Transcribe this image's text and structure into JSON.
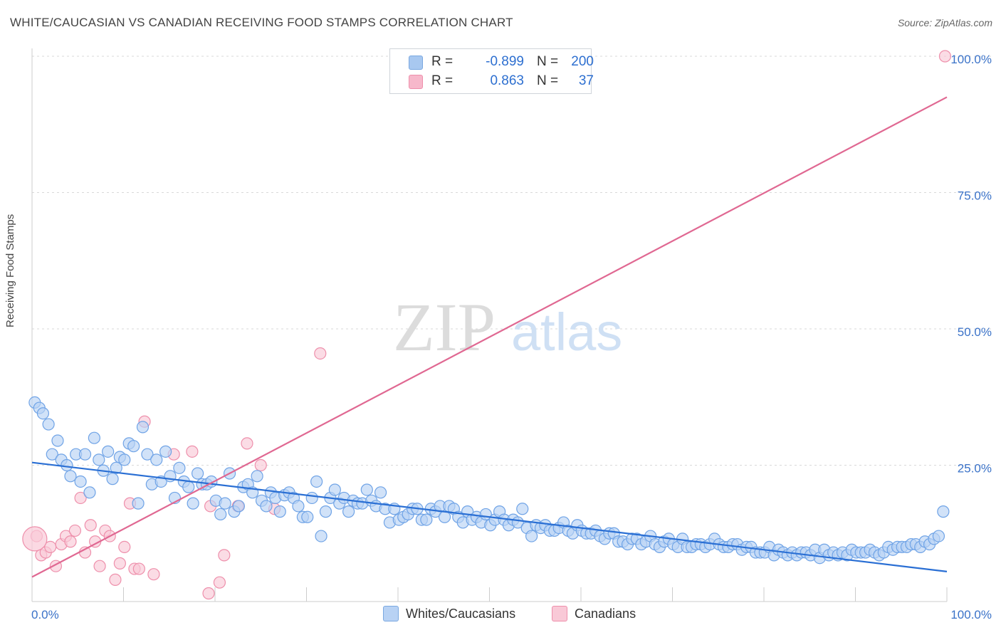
{
  "title": "WHITE/CAUCASIAN VS CANADIAN RECEIVING FOOD STAMPS CORRELATION CHART",
  "source": "Source: ZipAtlas.com",
  "watermark": {
    "zip": "ZIP",
    "atlas": "atlas"
  },
  "legend": {
    "rows": [
      {
        "r_label": "R =",
        "r_value": "-0.899",
        "n_label": "N =",
        "n_value": "200",
        "color": "#a8c8f0",
        "border": "#7aa8e0",
        "text_color": "#2d6fd0"
      },
      {
        "r_label": "R =",
        "r_value": "0.863",
        "n_label": "N =",
        "n_value": "37",
        "color": "#f7b8cb",
        "border": "#ee8fab",
        "text_color": "#2d6fd0"
      }
    ]
  },
  "bottom_legend": [
    {
      "label": "Whites/Caucasians",
      "color": "#b8d2f4",
      "border": "#7aa8e0"
    },
    {
      "label": "Canadians",
      "color": "#f9c9d7",
      "border": "#ee8fab"
    }
  ],
  "chart_data": {
    "type": "scatter",
    "title": "WHITE/CAUCASIAN VS CANADIAN RECEIVING FOOD STAMPS CORRELATION CHART",
    "xlabel": "",
    "ylabel": "Receiving Food Stamps",
    "xlim": [
      0,
      100
    ],
    "ylim": [
      0,
      100
    ],
    "x_tick_labels": [
      "0.0%",
      "100.0%"
    ],
    "y_ticks": [
      25,
      50,
      75,
      100
    ],
    "y_tick_labels": [
      "25.0%",
      "50.0%",
      "75.0%",
      "100.0%"
    ],
    "grid": "horizontal dashed",
    "legend_placement": "top-center",
    "series": [
      {
        "name": "Whites/Caucasians",
        "color": "#6fa3e6",
        "fill": "#b8d2f4",
        "r": -0.899,
        "n": 200,
        "trend": {
          "x": [
            0,
            100
          ],
          "y": [
            25.5,
            5.5
          ],
          "color": "#2a6fd4"
        },
        "points": [
          [
            0.3,
            36.5
          ],
          [
            0.8,
            35.5
          ],
          [
            1.2,
            34.5
          ],
          [
            1.8,
            32.5
          ],
          [
            2.2,
            27
          ],
          [
            2.8,
            29.5
          ],
          [
            3.2,
            26
          ],
          [
            3.8,
            25
          ],
          [
            4.2,
            23
          ],
          [
            4.8,
            27
          ],
          [
            5.3,
            22
          ],
          [
            5.8,
            27
          ],
          [
            6.3,
            20
          ],
          [
            6.8,
            30
          ],
          [
            7.3,
            26
          ],
          [
            7.8,
            24
          ],
          [
            8.3,
            27.5
          ],
          [
            8.8,
            22.5
          ],
          [
            9.2,
            24.5
          ],
          [
            9.6,
            26.5
          ],
          [
            10.1,
            26
          ],
          [
            10.6,
            29
          ],
          [
            11.1,
            28.5
          ],
          [
            11.6,
            18
          ],
          [
            12.1,
            32
          ],
          [
            12.6,
            27
          ],
          [
            13.1,
            21.5
          ],
          [
            13.6,
            26
          ],
          [
            14.1,
            22
          ],
          [
            14.6,
            27.5
          ],
          [
            15.1,
            23
          ],
          [
            15.6,
            19
          ],
          [
            16.1,
            24.5
          ],
          [
            16.6,
            22
          ],
          [
            17.1,
            21
          ],
          [
            17.6,
            18
          ],
          [
            18.1,
            23.5
          ],
          [
            18.6,
            21.5
          ],
          [
            19.1,
            21.5
          ],
          [
            19.6,
            22
          ],
          [
            20.1,
            18.5
          ],
          [
            20.6,
            16
          ],
          [
            21.1,
            18
          ],
          [
            21.6,
            23.5
          ],
          [
            22.1,
            16.5
          ],
          [
            22.6,
            17.5
          ],
          [
            23.1,
            21
          ],
          [
            23.6,
            21.5
          ],
          [
            24.1,
            20
          ],
          [
            24.6,
            23
          ],
          [
            25.1,
            18.5
          ],
          [
            25.6,
            17.5
          ],
          [
            26.1,
            20
          ],
          [
            26.6,
            19
          ],
          [
            27.1,
            16.5
          ],
          [
            27.6,
            19.5
          ],
          [
            28.1,
            20
          ],
          [
            28.6,
            19
          ],
          [
            29.1,
            17.5
          ],
          [
            29.6,
            15.5
          ],
          [
            30.1,
            15.5
          ],
          [
            30.6,
            19
          ],
          [
            31.1,
            22
          ],
          [
            31.6,
            12
          ],
          [
            32.1,
            16.5
          ],
          [
            32.6,
            19
          ],
          [
            33.1,
            20.5
          ],
          [
            33.6,
            18
          ],
          [
            34.1,
            19
          ],
          [
            34.6,
            16.5
          ],
          [
            35.1,
            18.5
          ],
          [
            35.6,
            18
          ],
          [
            36.1,
            18
          ],
          [
            36.6,
            20.5
          ],
          [
            37.1,
            18.5
          ],
          [
            37.6,
            17.5
          ],
          [
            38.1,
            20
          ],
          [
            38.6,
            17
          ],
          [
            39.1,
            14.5
          ],
          [
            39.6,
            17
          ],
          [
            40.1,
            15
          ],
          [
            40.6,
            15.5
          ],
          [
            41.1,
            16
          ],
          [
            41.6,
            17
          ],
          [
            42.1,
            17
          ],
          [
            42.6,
            15
          ],
          [
            43.1,
            15
          ],
          [
            43.6,
            17
          ],
          [
            44.1,
            16.5
          ],
          [
            44.6,
            17.5
          ],
          [
            45.1,
            15.5
          ],
          [
            45.6,
            17.5
          ],
          [
            46.1,
            17
          ],
          [
            46.6,
            15.5
          ],
          [
            47.1,
            14.5
          ],
          [
            47.6,
            16.5
          ],
          [
            48.1,
            15
          ],
          [
            48.6,
            15.5
          ],
          [
            49.1,
            14.5
          ],
          [
            49.6,
            16
          ],
          [
            50.1,
            14
          ],
          [
            50.6,
            15
          ],
          [
            51.1,
            16.5
          ],
          [
            51.6,
            15
          ],
          [
            52.1,
            14
          ],
          [
            52.6,
            15
          ],
          [
            53.1,
            14.5
          ],
          [
            53.6,
            17
          ],
          [
            54.1,
            13.5
          ],
          [
            54.6,
            12
          ],
          [
            55.1,
            14
          ],
          [
            55.6,
            13.5
          ],
          [
            56.1,
            14
          ],
          [
            56.6,
            13
          ],
          [
            57.1,
            13
          ],
          [
            57.6,
            13.5
          ],
          [
            58.1,
            14.5
          ],
          [
            58.6,
            13
          ],
          [
            59.1,
            12.5
          ],
          [
            59.6,
            14
          ],
          [
            60.1,
            13
          ],
          [
            60.6,
            12.5
          ],
          [
            61.1,
            12.5
          ],
          [
            61.6,
            13
          ],
          [
            62.1,
            12
          ],
          [
            62.6,
            11.5
          ],
          [
            63.1,
            12.5
          ],
          [
            63.6,
            12.5
          ],
          [
            64.1,
            11
          ],
          [
            64.6,
            11
          ],
          [
            65.1,
            10.5
          ],
          [
            65.6,
            11.5
          ],
          [
            66.1,
            11.5
          ],
          [
            66.6,
            10.5
          ],
          [
            67.1,
            11
          ],
          [
            67.6,
            12
          ],
          [
            68.1,
            10.5
          ],
          [
            68.6,
            10
          ],
          [
            69.1,
            11
          ],
          [
            69.6,
            11.5
          ],
          [
            70.1,
            10.5
          ],
          [
            70.6,
            10
          ],
          [
            71.1,
            11.5
          ],
          [
            71.6,
            10
          ],
          [
            72.1,
            10
          ],
          [
            72.6,
            10.5
          ],
          [
            73.1,
            10.5
          ],
          [
            73.6,
            10
          ],
          [
            74.1,
            10.5
          ],
          [
            74.6,
            11.5
          ],
          [
            75.1,
            10.5
          ],
          [
            75.6,
            10
          ],
          [
            76.1,
            10
          ],
          [
            76.6,
            10.5
          ],
          [
            77.1,
            10.5
          ],
          [
            77.6,
            9.5
          ],
          [
            78.1,
            10
          ],
          [
            78.6,
            10
          ],
          [
            79.1,
            9
          ],
          [
            79.6,
            9
          ],
          [
            80.1,
            9
          ],
          [
            80.6,
            10
          ],
          [
            81.1,
            8.5
          ],
          [
            81.6,
            9.5
          ],
          [
            82.1,
            9
          ],
          [
            82.6,
            8.5
          ],
          [
            83.1,
            9
          ],
          [
            83.6,
            8.5
          ],
          [
            84.1,
            9
          ],
          [
            84.6,
            9
          ],
          [
            85.1,
            8.5
          ],
          [
            85.6,
            9.5
          ],
          [
            86.1,
            8
          ],
          [
            86.6,
            9.5
          ],
          [
            87.1,
            8.5
          ],
          [
            87.6,
            9
          ],
          [
            88.1,
            8.5
          ],
          [
            88.6,
            9
          ],
          [
            89.1,
            8.5
          ],
          [
            89.6,
            9.5
          ],
          [
            90.1,
            9
          ],
          [
            90.6,
            9
          ],
          [
            91.1,
            9
          ],
          [
            91.6,
            9.5
          ],
          [
            92.1,
            9
          ],
          [
            92.6,
            8.5
          ],
          [
            93.1,
            9
          ],
          [
            93.6,
            10
          ],
          [
            94.1,
            9.5
          ],
          [
            94.6,
            10
          ],
          [
            95.1,
            10
          ],
          [
            95.6,
            10
          ],
          [
            96.1,
            10.5
          ],
          [
            96.6,
            10.5
          ],
          [
            97.1,
            10
          ],
          [
            97.6,
            11
          ],
          [
            98.1,
            10.5
          ],
          [
            98.6,
            11.5
          ],
          [
            99.1,
            12
          ],
          [
            99.6,
            16.5
          ]
        ]
      },
      {
        "name": "Canadians",
        "color": "#ee8fab",
        "fill": "#f9c9d7",
        "r": 0.863,
        "n": 37,
        "trend": {
          "x": [
            0,
            100
          ],
          "y": [
            4.5,
            92.5
          ],
          "color": "#e06892"
        },
        "points": [
          [
            0.5,
            12
          ],
          [
            1.0,
            8.5
          ],
          [
            1.5,
            9
          ],
          [
            2.0,
            10
          ],
          [
            2.6,
            6.5
          ],
          [
            3.2,
            10.5
          ],
          [
            3.7,
            12
          ],
          [
            4.2,
            11
          ],
          [
            4.7,
            13
          ],
          [
            5.3,
            19
          ],
          [
            5.8,
            9
          ],
          [
            6.4,
            14
          ],
          [
            6.9,
            11
          ],
          [
            7.4,
            6.5
          ],
          [
            8.0,
            13
          ],
          [
            8.5,
            12
          ],
          [
            9.1,
            4
          ],
          [
            9.6,
            7
          ],
          [
            10.1,
            10
          ],
          [
            10.7,
            18
          ],
          [
            11.2,
            6
          ],
          [
            11.7,
            6
          ],
          [
            12.3,
            33
          ],
          [
            13.3,
            5
          ],
          [
            15.5,
            27
          ],
          [
            17.5,
            27.5
          ],
          [
            19.3,
            1.5
          ],
          [
            19.5,
            17.5
          ],
          [
            20.5,
            3.5
          ],
          [
            21.0,
            8.5
          ],
          [
            22.5,
            17.5
          ],
          [
            23.5,
            29
          ],
          [
            25.0,
            25
          ],
          [
            26.5,
            17
          ],
          [
            31.5,
            45.5
          ],
          [
            99.8,
            100
          ],
          [
            0.3,
            11.5
          ]
        ]
      }
    ]
  }
}
